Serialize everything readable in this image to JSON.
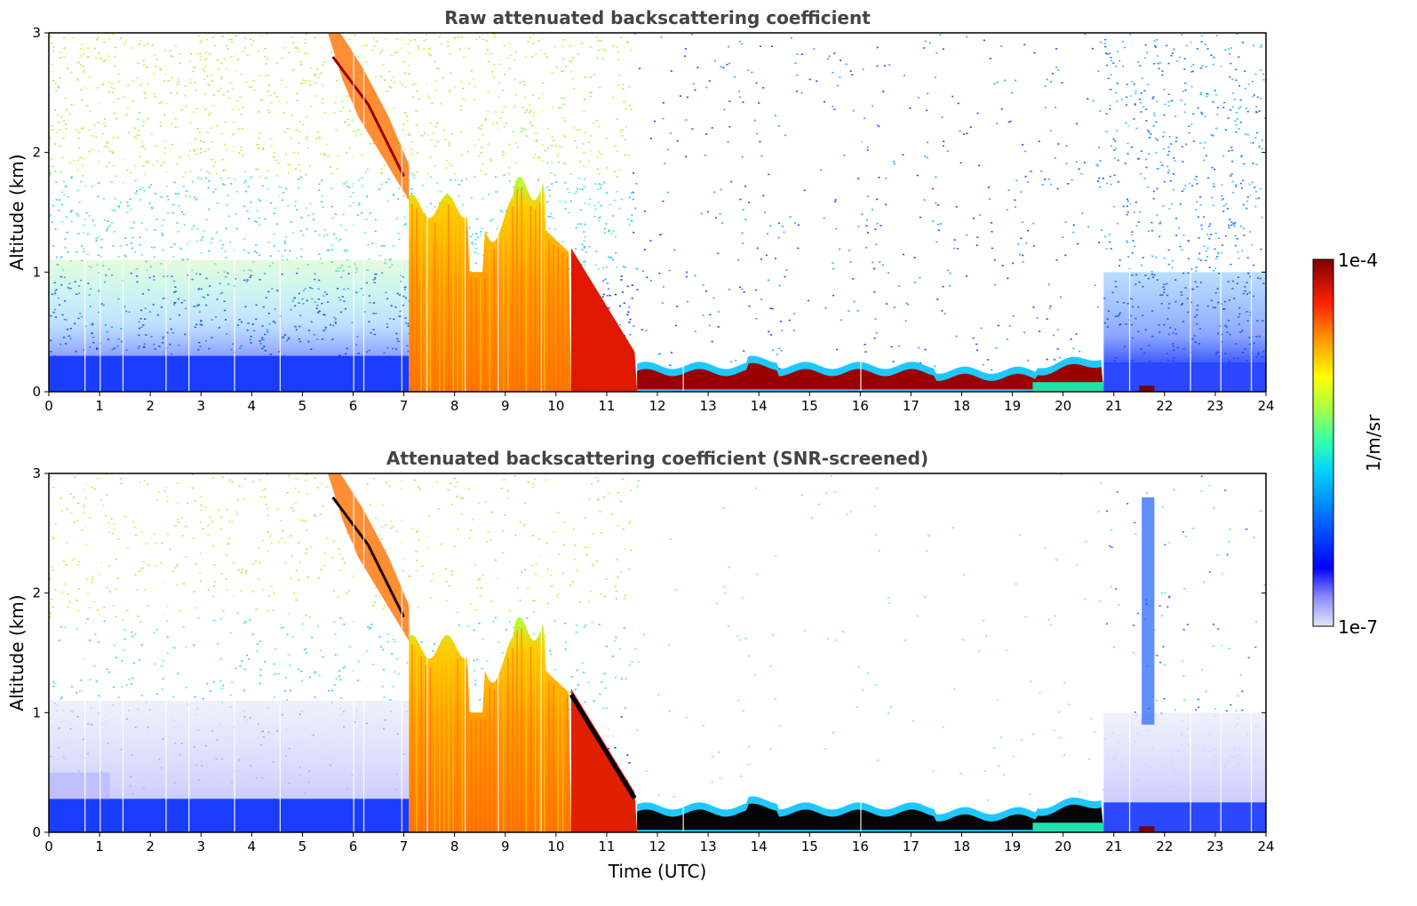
{
  "chart_data": [
    {
      "type": "heatmap",
      "title": "Raw attenuated backscattering coefficient",
      "xlabel": "",
      "ylabel": "Altitude (km)",
      "xlim": [
        0,
        24
      ],
      "ylim": [
        0,
        3
      ],
      "xticks": [
        0,
        1,
        2,
        3,
        4,
        5,
        6,
        7,
        8,
        9,
        10,
        11,
        12,
        13,
        14,
        15,
        16,
        17,
        18,
        19,
        20,
        21,
        22,
        23,
        24
      ],
      "yticks": [
        0,
        1,
        2,
        3
      ],
      "layers": [
        {
          "name": "surface noise layer",
          "x": [
            0,
            7.1
          ],
          "y_top": 0.3,
          "level": "blue"
        },
        {
          "name": "cloud descending",
          "x": [
            5.5,
            7.1
          ],
          "y_top_start": 3.0,
          "y_top_end": 1.9,
          "level": "orange-red"
        },
        {
          "name": "thick cloud / precipitation",
          "x": [
            7.1,
            10.3
          ],
          "y_top": 1.5,
          "level": "orange"
        },
        {
          "name": "cloud base decreasing",
          "x": [
            10.3,
            11.6
          ],
          "y_top_start": 1.2,
          "y_top_end": 0.3,
          "level": "red"
        },
        {
          "name": "boundary layer",
          "x": [
            11.6,
            20.8
          ],
          "y_top": 0.22,
          "level": "dark-red"
        },
        {
          "name": "night noise",
          "x": [
            20.8,
            24
          ],
          "y_top": 1.0,
          "level": "blue"
        }
      ]
    },
    {
      "type": "heatmap",
      "title": "Attenuated backscattering coefficient (SNR-screened)",
      "xlabel": "Time (UTC)",
      "ylabel": "Altitude (km)",
      "xlim": [
        0,
        24
      ],
      "ylim": [
        0,
        3
      ],
      "xticks": [
        0,
        1,
        2,
        3,
        4,
        5,
        6,
        7,
        8,
        9,
        10,
        11,
        12,
        13,
        14,
        15,
        16,
        17,
        18,
        19,
        20,
        21,
        22,
        23,
        24
      ],
      "yticks": [
        0,
        1,
        2,
        3
      ],
      "layers": [
        {
          "name": "surface layer",
          "x": [
            0,
            7.1
          ],
          "y_top": 0.28,
          "level": "blue"
        },
        {
          "name": "screened noise band",
          "x": [
            0,
            7.1
          ],
          "y_top": 1.1,
          "level": "lavender"
        },
        {
          "name": "cloud descending",
          "x": [
            5.5,
            7.1
          ],
          "y_top_start": 3.0,
          "y_top_end": 1.9,
          "level": "orange-red"
        },
        {
          "name": "thick cloud / precipitation",
          "x": [
            7.1,
            10.3
          ],
          "y_top": 1.5,
          "level": "orange"
        },
        {
          "name": "cloud base decreasing",
          "x": [
            10.3,
            11.6
          ],
          "y_top_start": 1.2,
          "y_top_end": 0.3,
          "level": "red-black"
        },
        {
          "name": "boundary layer",
          "x": [
            11.6,
            20.8
          ],
          "y_top": 0.22,
          "level": "black"
        },
        {
          "name": "night screened band",
          "x": [
            20.8,
            24
          ],
          "y_top": 1.0,
          "level": "lavender"
        }
      ]
    }
  ],
  "colorbar": {
    "label": "1/m/sr",
    "max_label": "1e-4",
    "min_label": "1e-7",
    "colormap": "jet",
    "colors": [
      "#e6e6fa",
      "#0000ff",
      "#00bfff",
      "#00ffcc",
      "#66ff33",
      "#ffff00",
      "#ff9900",
      "#ff2200",
      "#800000"
    ]
  }
}
